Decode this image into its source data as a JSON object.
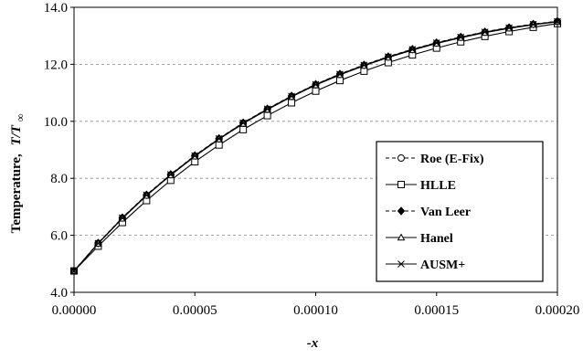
{
  "chart_data": {
    "type": "line",
    "title": "",
    "xlabel": "-x",
    "ylabel_main": "Temperature,",
    "ylabel_symbol": "T/T",
    "ylabel_sub": "∞",
    "xlim": [
      0,
      0.0002
    ],
    "ylim": [
      4,
      14
    ],
    "xticks": [
      "0.00000",
      "0.00005",
      "0.00010",
      "0.00015",
      "0.00020"
    ],
    "yticks": [
      "4.0",
      "6.0",
      "8.0",
      "10.0",
      "12.0",
      "14.0"
    ],
    "grid": "horizontal-dashed",
    "legend_position": "right-inside",
    "series": [
      {
        "name": "Roe (E-Fix)",
        "marker": "circle-open",
        "line": "dashed",
        "x": [
          0,
          1e-05,
          2e-05,
          3e-05,
          4e-05,
          5e-05,
          6e-05,
          7e-05,
          8e-05,
          9e-05,
          0.0001,
          0.00011,
          0.00012,
          0.00013,
          0.00014,
          0.00015,
          0.00016,
          0.00017,
          0.00018,
          0.00019,
          0.0002
        ],
        "y": [
          4.75,
          5.72,
          6.6,
          7.4,
          8.12,
          8.78,
          9.38,
          9.93,
          10.42,
          10.87,
          11.28,
          11.64,
          11.96,
          12.25,
          12.51,
          12.74,
          12.94,
          13.12,
          13.27,
          13.4,
          13.5
        ]
      },
      {
        "name": "HLLE",
        "marker": "square-open",
        "line": "solid",
        "x": [
          0,
          1e-05,
          2e-05,
          3e-05,
          4e-05,
          5e-05,
          6e-05,
          7e-05,
          8e-05,
          9e-05,
          0.0001,
          0.00011,
          0.00012,
          0.00013,
          0.00014,
          0.00015,
          0.00016,
          0.00017,
          0.00018,
          0.00019,
          0.0002
        ],
        "y": [
          4.75,
          5.62,
          6.45,
          7.22,
          7.93,
          8.58,
          9.17,
          9.71,
          10.2,
          10.65,
          11.06,
          11.43,
          11.76,
          12.06,
          12.33,
          12.57,
          12.79,
          12.98,
          13.15,
          13.3,
          13.43
        ]
      },
      {
        "name": "Van Leer",
        "marker": "diamond-filled",
        "line": "dashed",
        "x": [
          0,
          1e-05,
          2e-05,
          3e-05,
          4e-05,
          5e-05,
          6e-05,
          7e-05,
          8e-05,
          9e-05,
          0.0001,
          0.00011,
          0.00012,
          0.00013,
          0.00014,
          0.00015,
          0.00016,
          0.00017,
          0.00018,
          0.00019,
          0.0002
        ],
        "y": [
          4.75,
          5.73,
          6.62,
          7.42,
          8.14,
          8.8,
          9.4,
          9.95,
          10.44,
          10.89,
          11.3,
          11.66,
          11.98,
          12.27,
          12.53,
          12.76,
          12.96,
          13.14,
          13.29,
          13.41,
          13.51
        ]
      },
      {
        "name": "Hanel",
        "marker": "triangle-open",
        "line": "solid",
        "x": [
          0,
          1e-05,
          2e-05,
          3e-05,
          4e-05,
          5e-05,
          6e-05,
          7e-05,
          8e-05,
          9e-05,
          0.0001,
          0.00011,
          0.00012,
          0.00013,
          0.00014,
          0.00015,
          0.00016,
          0.00017,
          0.00018,
          0.00019,
          0.0002
        ],
        "y": [
          4.75,
          5.71,
          6.59,
          7.39,
          8.11,
          8.77,
          9.37,
          9.92,
          10.41,
          10.86,
          11.27,
          11.63,
          11.95,
          12.24,
          12.5,
          12.73,
          12.93,
          13.11,
          13.26,
          13.39,
          13.49
        ]
      },
      {
        "name": "AUSM+",
        "marker": "cross",
        "line": "solid",
        "x": [
          0,
          1e-05,
          2e-05,
          3e-05,
          4e-05,
          5e-05,
          6e-05,
          7e-05,
          8e-05,
          9e-05,
          0.0001,
          0.00011,
          0.00012,
          0.00013,
          0.00014,
          0.00015,
          0.00016,
          0.00017,
          0.00018,
          0.00019,
          0.0002
        ],
        "y": [
          4.75,
          5.72,
          6.61,
          7.41,
          8.13,
          8.79,
          9.39,
          9.94,
          10.43,
          10.88,
          11.29,
          11.65,
          11.97,
          12.26,
          12.52,
          12.75,
          12.95,
          13.13,
          13.28,
          13.4,
          13.5
        ]
      }
    ]
  }
}
